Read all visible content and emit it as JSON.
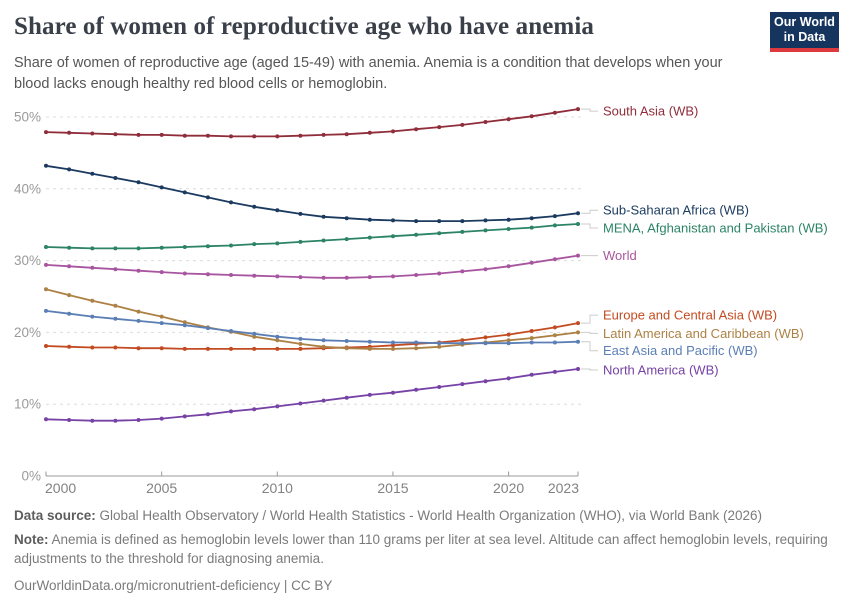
{
  "logo": {
    "line1": "Our World",
    "line2": "in Data"
  },
  "chart_data": {
    "type": "line",
    "title": "Share of women of reproductive age who have anemia",
    "subtitle": "Share of women of reproductive age (aged 15-49) with anemia. Anemia is a condition that develops when your blood lacks enough healthy red blood cells or hemoglobin.",
    "x": [
      2000,
      2001,
      2002,
      2003,
      2004,
      2005,
      2006,
      2007,
      2008,
      2009,
      2010,
      2011,
      2012,
      2013,
      2014,
      2015,
      2016,
      2017,
      2018,
      2019,
      2020,
      2021,
      2022,
      2023
    ],
    "x_ticks": [
      2000,
      2005,
      2010,
      2015,
      2020,
      2023
    ],
    "y_ticks": [
      0,
      10,
      20,
      30,
      40,
      50
    ],
    "y_tick_suffix": "%",
    "ylim": [
      0,
      52
    ],
    "grid": "horizontal-dashed",
    "legend_position": "right-end-labels",
    "axis_color": "#9a9a9a",
    "grid_color": "#dcdcdc",
    "connector_color": "#cccccc",
    "series": [
      {
        "name": "South Asia (WB)",
        "color": "#8f2d3b",
        "label_dy": 2,
        "values": [
          47.9,
          47.8,
          47.7,
          47.6,
          47.5,
          47.5,
          47.4,
          47.4,
          47.3,
          47.3,
          47.3,
          47.4,
          47.5,
          47.6,
          47.8,
          48.0,
          48.3,
          48.6,
          48.9,
          49.3,
          49.7,
          50.1,
          50.6,
          51.1
        ]
      },
      {
        "name": "Sub-Saharan Africa (WB)",
        "color": "#1b3a5f",
        "label_dy": -3,
        "values": [
          43.2,
          42.7,
          42.1,
          41.5,
          40.9,
          40.2,
          39.5,
          38.8,
          38.1,
          37.5,
          37.0,
          36.5,
          36.1,
          35.9,
          35.7,
          35.6,
          35.5,
          35.5,
          35.5,
          35.6,
          35.7,
          35.9,
          36.2,
          36.6
        ]
      },
      {
        "name": "MENA, Afghanistan and Pakistan (WB)",
        "color": "#2c8465",
        "label_dy": 4,
        "values": [
          31.9,
          31.8,
          31.7,
          31.7,
          31.7,
          31.8,
          31.9,
          32.0,
          32.1,
          32.3,
          32.4,
          32.6,
          32.8,
          33.0,
          33.2,
          33.4,
          33.6,
          33.8,
          34.0,
          34.2,
          34.4,
          34.6,
          34.9,
          35.1
        ]
      },
      {
        "name": "World",
        "color": "#a8559f",
        "label_dy": 0,
        "values": [
          29.4,
          29.2,
          29.0,
          28.8,
          28.6,
          28.4,
          28.2,
          28.1,
          28.0,
          27.9,
          27.8,
          27.7,
          27.6,
          27.6,
          27.7,
          27.8,
          28.0,
          28.2,
          28.5,
          28.8,
          29.2,
          29.7,
          30.2,
          30.7
        ]
      },
      {
        "name": "Europe and Central Asia (WB)",
        "color": "#c24b21",
        "label_dy": -8,
        "values": [
          18.1,
          18.0,
          17.9,
          17.9,
          17.8,
          17.8,
          17.7,
          17.7,
          17.7,
          17.7,
          17.7,
          17.7,
          17.8,
          17.9,
          18.0,
          18.2,
          18.4,
          18.6,
          18.9,
          19.3,
          19.7,
          20.2,
          20.7,
          21.3
        ]
      },
      {
        "name": "Latin America and Caribbean (WB)",
        "color": "#ac8145",
        "label_dy": 1,
        "values": [
          26.0,
          25.2,
          24.4,
          23.7,
          22.9,
          22.2,
          21.4,
          20.7,
          20.1,
          19.4,
          18.9,
          18.4,
          18.0,
          17.8,
          17.7,
          17.7,
          17.8,
          18.0,
          18.3,
          18.6,
          18.9,
          19.2,
          19.6,
          20.0
        ]
      },
      {
        "name": "East Asia and Pacific (WB)",
        "color": "#5b7fb5",
        "label_dy": 9,
        "values": [
          23.0,
          22.6,
          22.2,
          21.9,
          21.6,
          21.3,
          21.0,
          20.6,
          20.2,
          19.8,
          19.4,
          19.1,
          18.9,
          18.8,
          18.7,
          18.6,
          18.6,
          18.5,
          18.5,
          18.5,
          18.5,
          18.6,
          18.6,
          18.7
        ]
      },
      {
        "name": "North America (WB)",
        "color": "#7642a5",
        "label_dy": 1,
        "values": [
          7.9,
          7.8,
          7.7,
          7.7,
          7.8,
          8.0,
          8.3,
          8.6,
          9.0,
          9.3,
          9.7,
          10.1,
          10.5,
          10.9,
          11.3,
          11.6,
          12.0,
          12.4,
          12.8,
          13.2,
          13.6,
          14.1,
          14.5,
          14.9
        ]
      }
    ]
  },
  "footer": {
    "data_source_label": "Data source:",
    "data_source": "Global Health Observatory / World Health Statistics - World Health Organization (WHO), via World Bank (2026)",
    "note_label": "Note:",
    "note": "Anemia is defined as hemoglobin levels lower than 110 grams per liter at sea level. Altitude can affect hemoglobin levels, requiring adjustments to the threshold for diagnosing anemia.",
    "citation_link": "OurWorldinData.org/micronutrient-deficiency",
    "separator": "|",
    "citation_license": "CC BY"
  }
}
